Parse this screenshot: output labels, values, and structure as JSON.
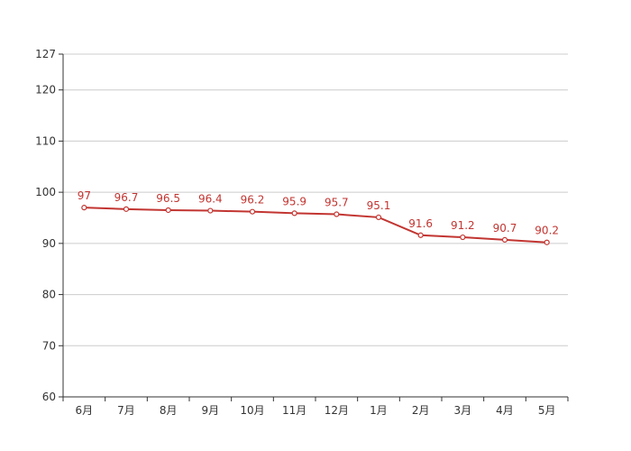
{
  "chart_data": {
    "type": "line",
    "categories": [
      "6月",
      "7月",
      "8月",
      "9月",
      "10月",
      "11月",
      "12月",
      "1月",
      "2月",
      "3月",
      "4月",
      "5月"
    ],
    "series": [
      {
        "values": [
          97,
          96.7,
          96.5,
          96.4,
          96.2,
          95.9,
          95.7,
          95.1,
          91.6,
          91.2,
          90.7,
          90.2
        ]
      }
    ],
    "y_ticks": [
      60,
      70,
      80,
      90,
      100,
      110,
      120,
      127
    ],
    "ylim": [
      60,
      127
    ],
    "grid": true,
    "colors": {
      "line": "#c23531",
      "marker_fill": "#ffffff",
      "grid": "#cccccc",
      "axis": "#333333"
    }
  }
}
